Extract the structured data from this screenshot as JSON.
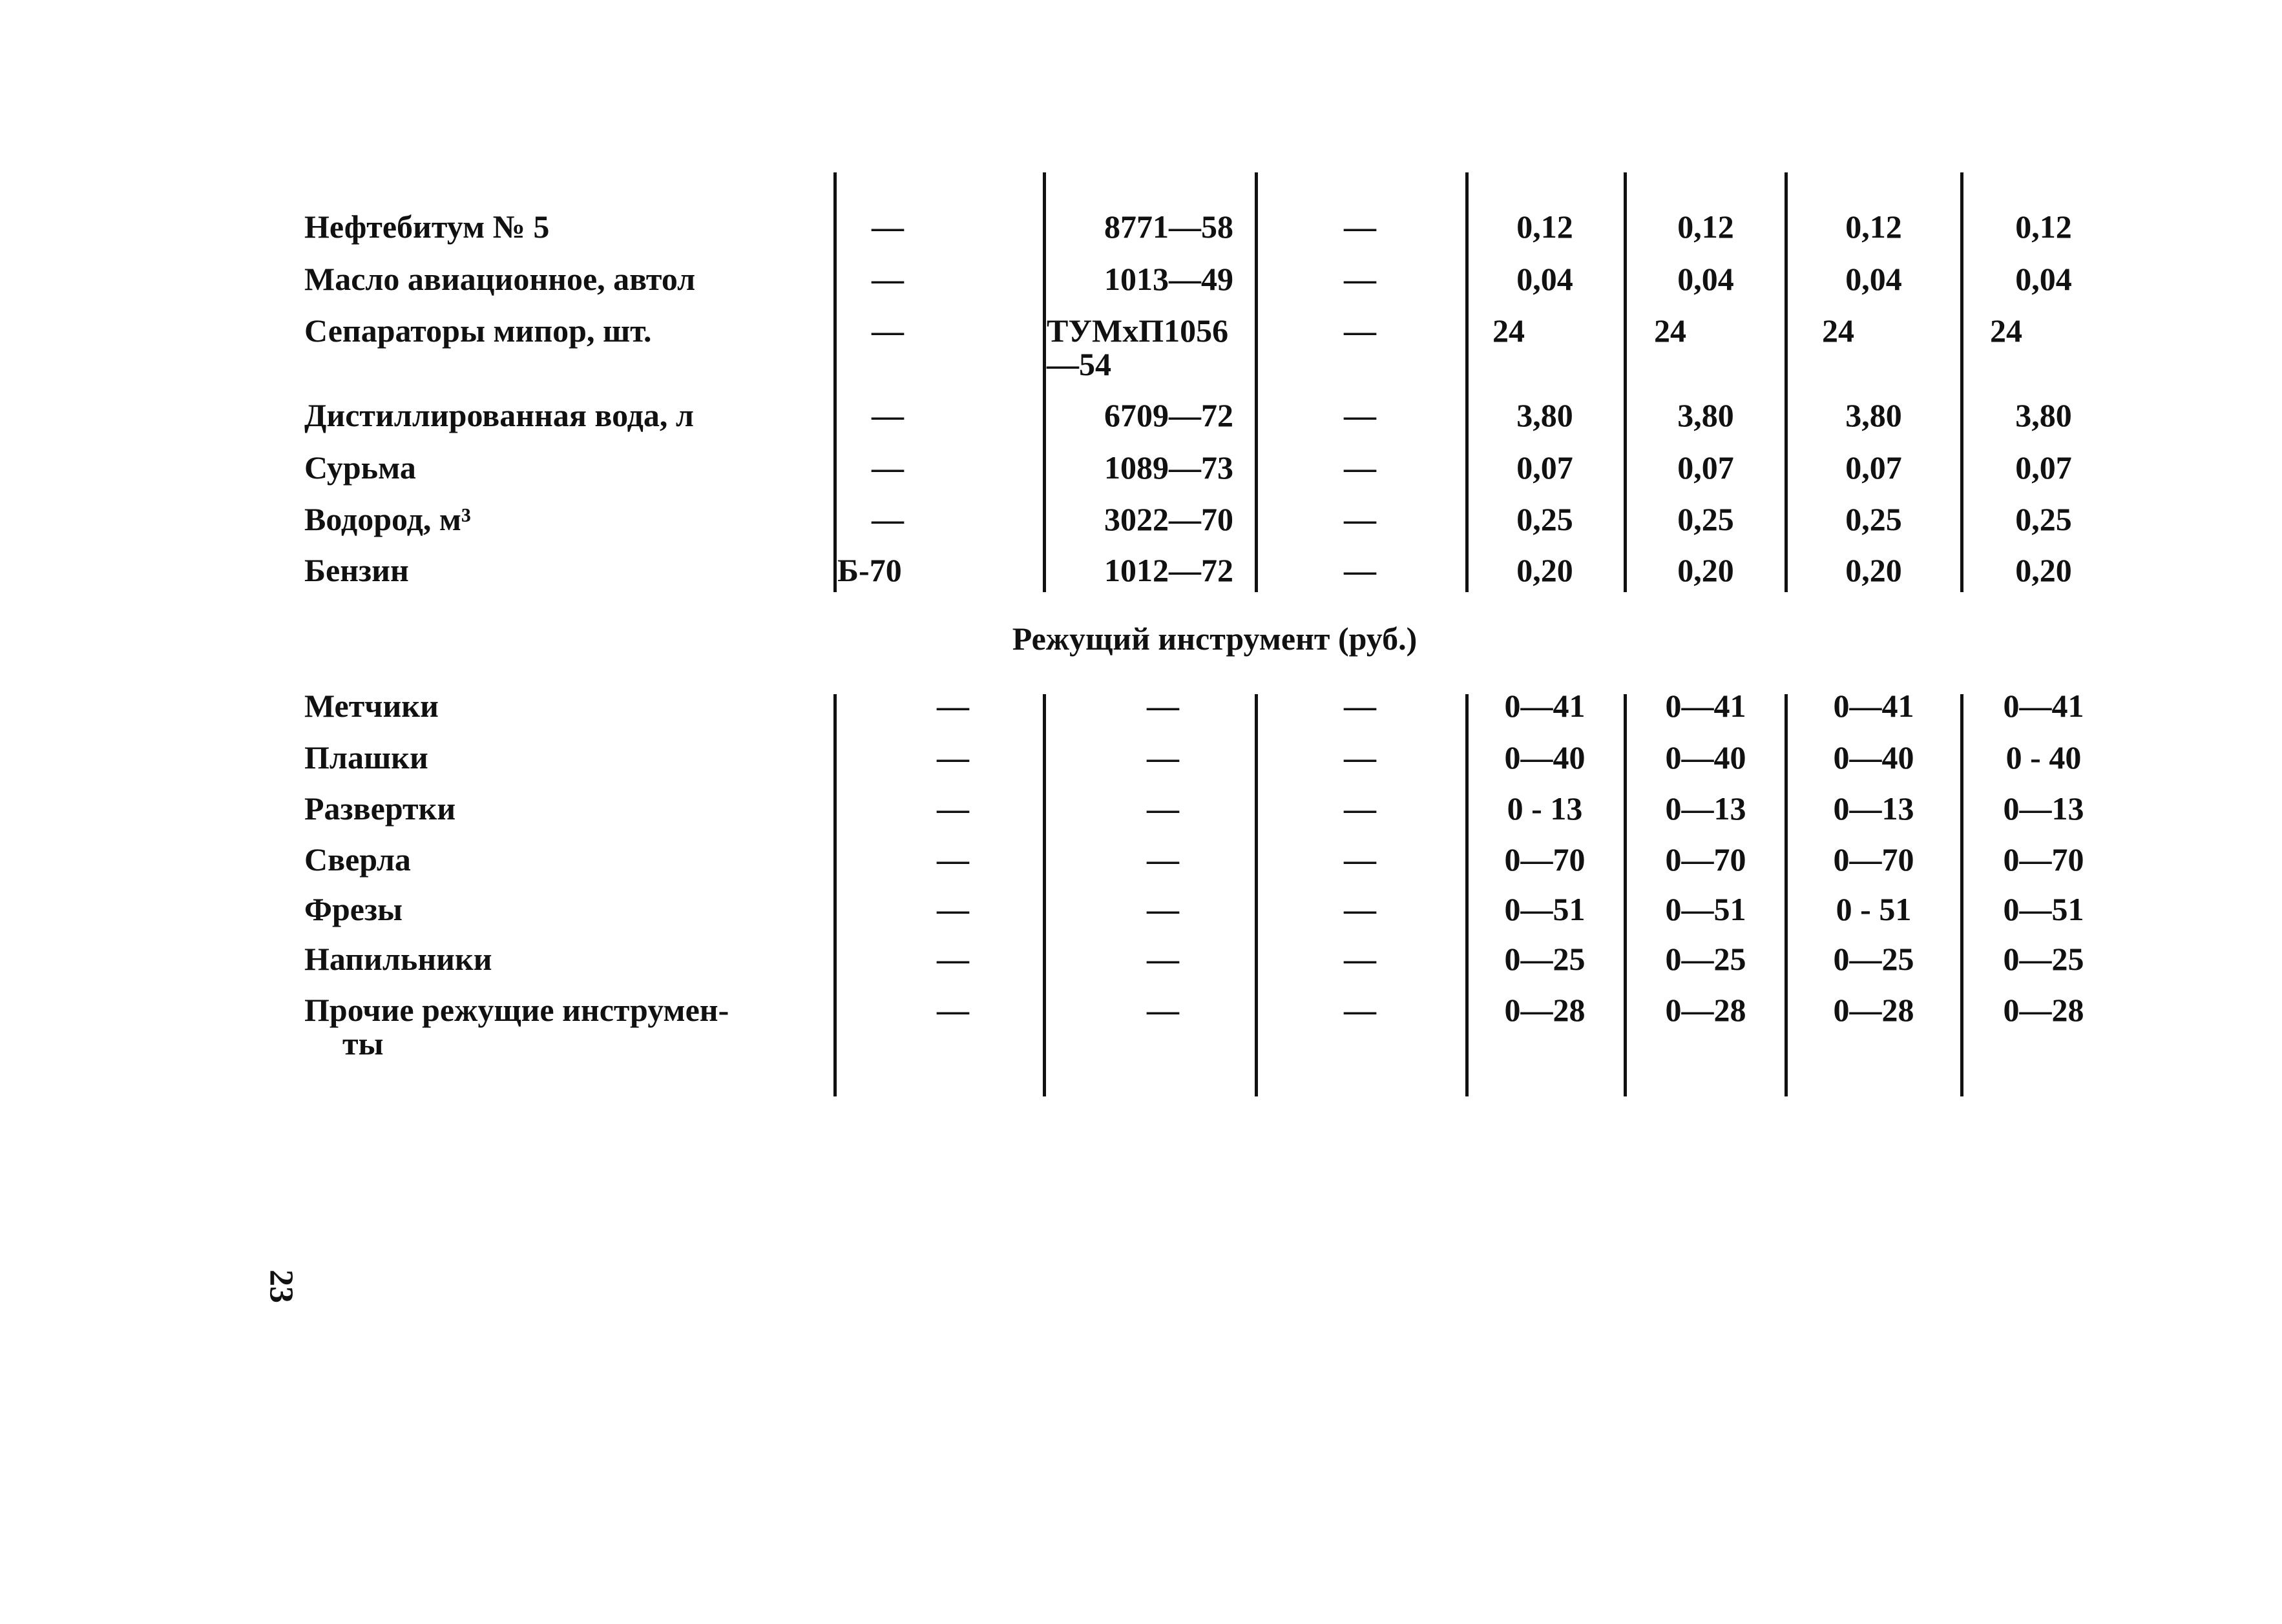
{
  "materials": [
    {
      "name": "Нефтебитум № 5",
      "mark": "—",
      "gost": "8771—58",
      "col3": "—",
      "values": [
        "0,12",
        "0,12",
        "0,12",
        "0,12"
      ]
    },
    {
      "name": "Масло авиационное, автол",
      "mark": "—",
      "gost": "1013—49",
      "col3": "—",
      "values": [
        "0,04",
        "0,04",
        "0,04",
        "0,04"
      ]
    },
    {
      "name": "Сепараторы мипор, шт.",
      "mark": "—",
      "gost": "ТУМхП1056",
      "gost2": "—54",
      "col3": "—",
      "values": [
        "24",
        "24",
        "24",
        "24"
      ]
    },
    {
      "name": "Дистиллированная вода, л",
      "mark": "—",
      "gost": "6709—72",
      "col3": "—",
      "values": [
        "3,80",
        "3,80",
        "3,80",
        "3,80"
      ]
    },
    {
      "name": "Сурьма",
      "mark": "—",
      "gost": "1089—73",
      "col3": "—",
      "values": [
        "0,07",
        "0,07",
        "0,07",
        "0,07"
      ]
    },
    {
      "name": "Водород, м³",
      "mark": "—",
      "gost": "3022—70",
      "col3": "—",
      "values": [
        "0,25",
        "0,25",
        "0,25",
        "0,25"
      ]
    },
    {
      "name": "Бензин",
      "mark": "Б-70",
      "gost": "1012—72",
      "col3": "—",
      "values": [
        "0,20",
        "0,20",
        "0,20",
        "0,20"
      ]
    }
  ],
  "section_title": "Режущий инструмент (руб.)",
  "tools": [
    {
      "name": "Метчики",
      "mark": "—",
      "gost": "—",
      "col3": "—",
      "values": [
        "0—41",
        "0—41",
        "0—41",
        "0—41"
      ]
    },
    {
      "name": "Плашки",
      "mark": "—",
      "gost": "—",
      "col3": "—",
      "values": [
        "0—40",
        "0—40",
        "0—40",
        "0 - 40"
      ]
    },
    {
      "name": "Развертки",
      "mark": "—",
      "gost": "—",
      "col3": "—",
      "values": [
        "0 - 13",
        "0—13",
        "0—13",
        "0—13"
      ]
    },
    {
      "name": "Сверла",
      "mark": "—",
      "gost": "—",
      "col3": "—",
      "values": [
        "0—70",
        "0—70",
        "0—70",
        "0—70"
      ]
    },
    {
      "name": "Фрезы",
      "mark": "—",
      "gost": "—",
      "col3": "—",
      "values": [
        "0—51",
        "0—51",
        "0 - 51",
        "0—51"
      ]
    },
    {
      "name": "Напильники",
      "mark": "—",
      "gost": "—",
      "col3": "—",
      "values": [
        "0—25",
        "0—25",
        "0—25",
        "0—25"
      ]
    },
    {
      "name": "Прочие режущие инструмен-",
      "name2": "ты",
      "mark": "—",
      "gost": "—",
      "col3": "—",
      "values": [
        "0—28",
        "0—28",
        "0—28",
        "0—28"
      ]
    }
  ],
  "page_number": "23"
}
